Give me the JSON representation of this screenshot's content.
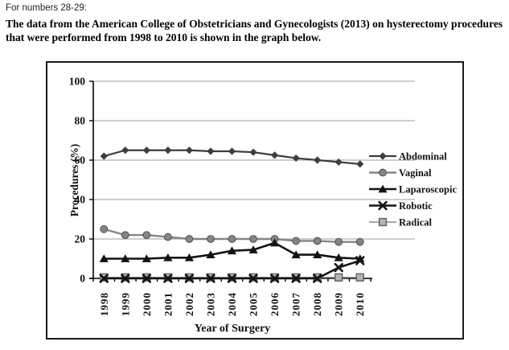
{
  "header": {
    "instruction": "For numbers 28-29:",
    "description": "The data from the American College of Obstetricians and Gynecologists (2013) on hysterectomy procedures that were performed from 1998 to 2010 is shown in the graph below."
  },
  "chart_data": {
    "type": "line",
    "title": "",
    "xlabel": "Year of Surgery",
    "ylabel": "Procedures (%)",
    "ylim": [
      0,
      100
    ],
    "y_ticks": [
      0,
      20,
      40,
      60,
      80,
      100
    ],
    "grid": true,
    "legend_position": "right",
    "categories": [
      "1998",
      "1999",
      "2000",
      "2001",
      "2002",
      "2003",
      "2004",
      "2005",
      "2006",
      "2007",
      "2008",
      "2009",
      "2010"
    ],
    "series": [
      {
        "name": "Abdominal",
        "marker": "diamond",
        "color": "#3d3d3d",
        "line_width": 2.2,
        "values": [
          62,
          65,
          65,
          65,
          65,
          64.5,
          64.5,
          64,
          62.5,
          61,
          60,
          59,
          58
        ]
      },
      {
        "name": "Vaginal",
        "marker": "circle",
        "color": "#858585",
        "line_width": 2.4,
        "values": [
          25,
          22,
          22,
          21,
          20,
          20,
          20,
          20,
          20,
          19,
          19,
          18.5,
          18.5
        ]
      },
      {
        "name": "Laparoscopic",
        "marker": "triangle",
        "color": "#141414",
        "line_width": 2.6,
        "values": [
          10,
          10,
          10,
          10.5,
          10.5,
          12,
          14,
          14.5,
          18,
          12,
          12,
          10.5,
          10
        ]
      },
      {
        "name": "Robotic",
        "marker": "x",
        "color": "#141414",
        "line_width": 2.6,
        "values": [
          0,
          0,
          0,
          0,
          0,
          0,
          0,
          0,
          0,
          0,
          0,
          5.5,
          9
        ]
      },
      {
        "name": "Radical",
        "marker": "square",
        "color": "#8c8c8c",
        "line_width": 1.6,
        "values": [
          0.5,
          0.5,
          0.5,
          0.5,
          0.5,
          0.5,
          0.5,
          0.5,
          0.5,
          0.5,
          0.5,
          0.5,
          0.5
        ]
      }
    ],
    "gridline_color": "#9e9e9e",
    "axis_color": "#000000",
    "text_color": "#111111"
  }
}
